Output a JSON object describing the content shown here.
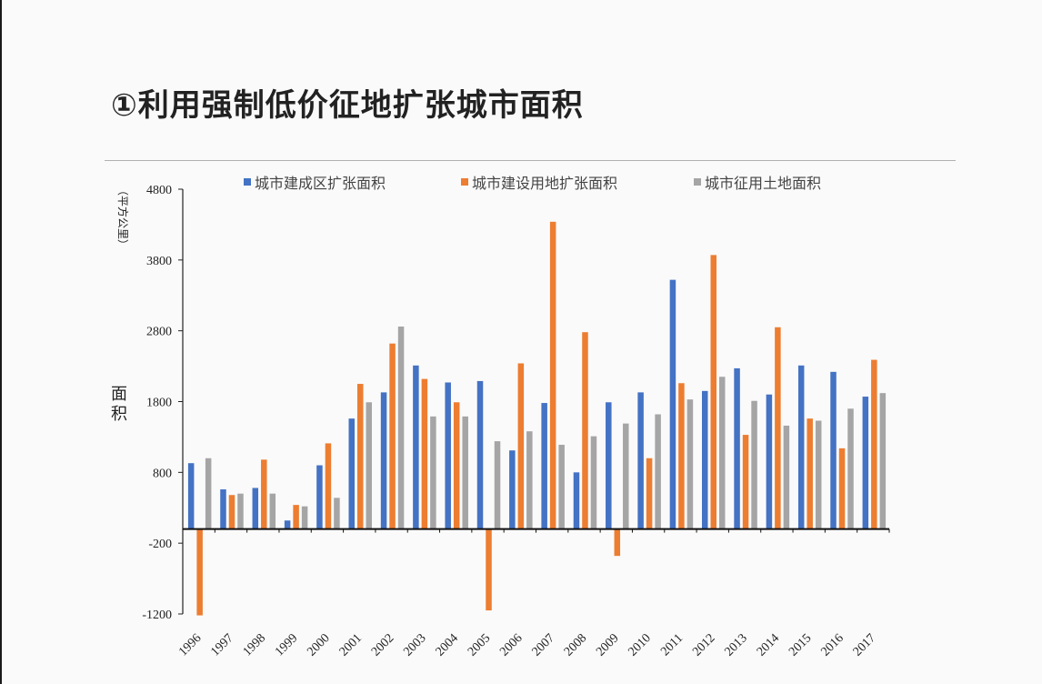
{
  "page": {
    "title": "①利用强制低价征地扩张城市面积"
  },
  "chart_data": {
    "type": "bar",
    "ylabel": "面积",
    "unit": "（平方公里）",
    "ylim": [
      -1200,
      4800
    ],
    "yticks": [
      4800,
      3800,
      2800,
      1800,
      800,
      -200,
      -1200
    ],
    "legend_position": "top",
    "categories": [
      "1996",
      "1997",
      "1998",
      "1999",
      "2000",
      "2001",
      "2002",
      "2003",
      "2004",
      "2005",
      "2006",
      "2007",
      "2008",
      "2009",
      "2010",
      "2011",
      "2012",
      "2013",
      "2014",
      "2015",
      "2016",
      "2017"
    ],
    "series": [
      {
        "name": "城市建成区扩张面积",
        "color": "#4472c4",
        "values": [
          930,
          560,
          580,
          120,
          900,
          1560,
          1930,
          2310,
          2070,
          2090,
          1110,
          1780,
          800,
          1790,
          1930,
          3520,
          1950,
          2270,
          1900,
          2310,
          2220,
          1870
        ]
      },
      {
        "name": "城市建设用地扩张面积",
        "color": "#ed7d31",
        "values": [
          -1220,
          480,
          980,
          340,
          1210,
          2050,
          2620,
          2120,
          1790,
          -1150,
          2340,
          4340,
          2780,
          -380,
          1000,
          2060,
          3870,
          1330,
          2850,
          1560,
          1140,
          2390
        ]
      },
      {
        "name": "城市征用土地面积",
        "color": "#a5a5a5",
        "values": [
          1000,
          500,
          500,
          320,
          440,
          1790,
          2860,
          1590,
          1590,
          1240,
          1380,
          1190,
          1310,
          1490,
          1620,
          1830,
          2150,
          1810,
          1460,
          1530,
          1700,
          1920
        ]
      }
    ]
  }
}
